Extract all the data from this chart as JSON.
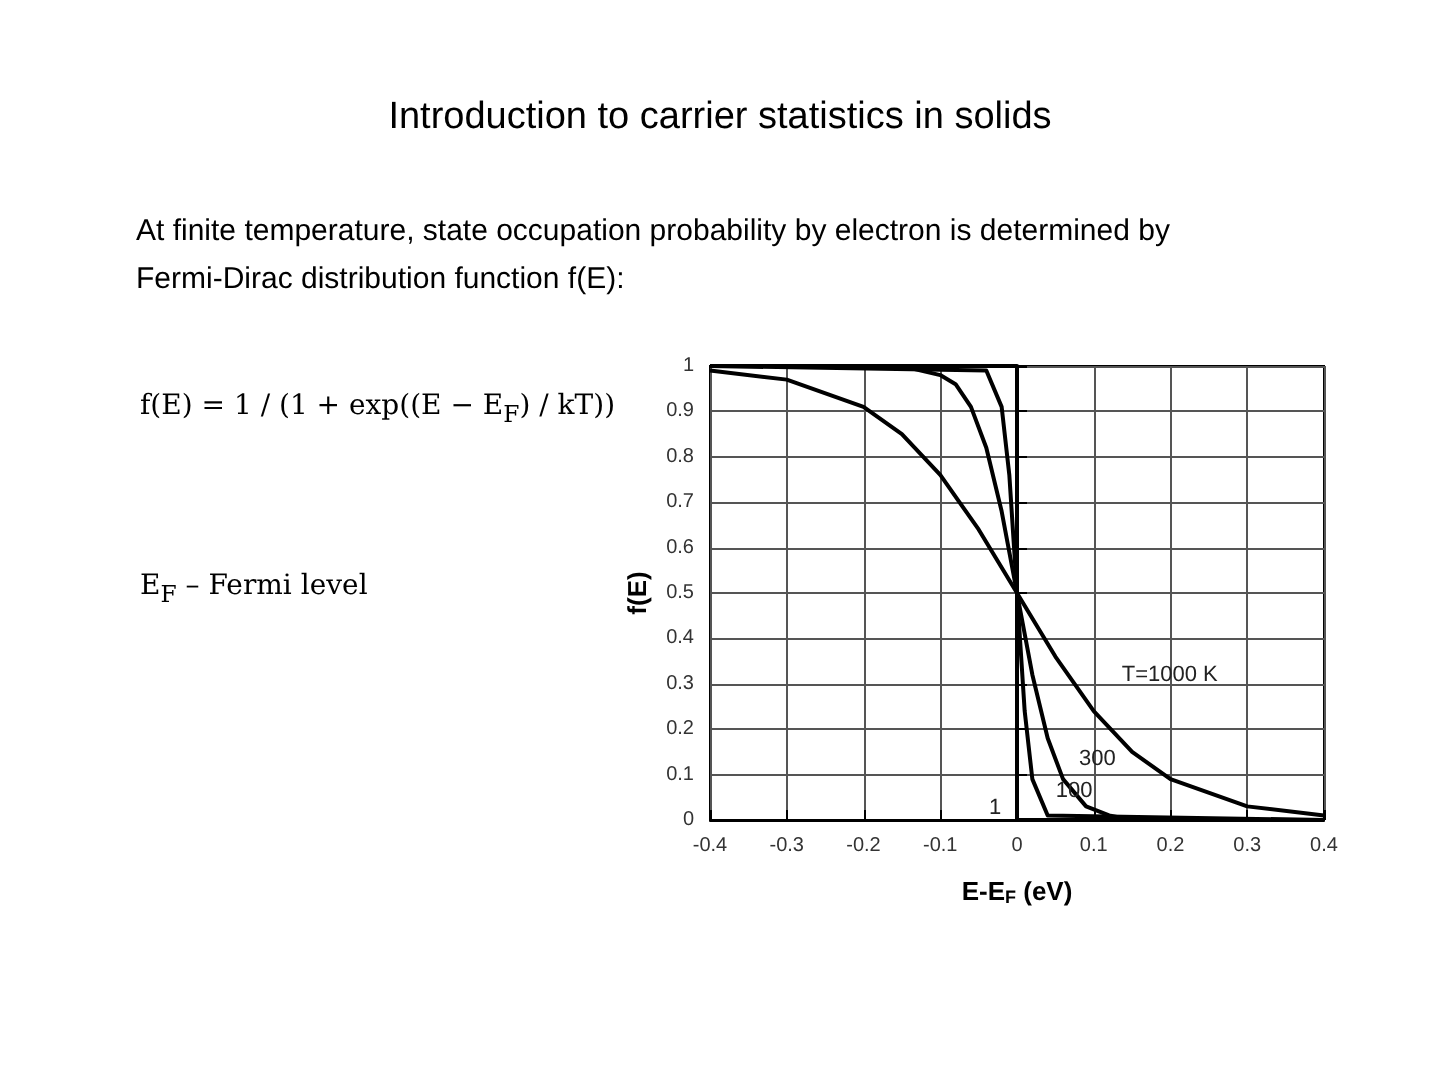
{
  "chart_data": {
    "type": "line",
    "title": "Introduction to carrier statistics in solids",
    "subtitle": "At finite temperature, state occupation probability by electron is determined by Fermi-Dirac distribution function f(E):",
    "xlabel": "E-E$_{F}$ (eV)",
    "ylabel": "f(E)",
    "series": [
      {
        "color": "#000000",
        "x": [
          -0.4,
          -0.3,
          -0.2,
          -0.15,
          -0.1,
          -0.05,
          0,
          0.05,
          0.1,
          0.15,
          0.2,
          0.3,
          0.4
        ],
        "values": [
          0.99,
          0.97,
          0.91,
          0.85,
          0.76,
          0.64,
          0.5,
          0.36,
          0.24,
          0.15,
          0.09,
          0.03,
          0.01
        ]
      },
      {
        "color": "#000000",
        "x": [
          -0.4,
          -0.15,
          -0.1,
          -0.08,
          -0.06,
          -0.04,
          -0.02,
          0,
          0.02,
          0.04,
          0.06,
          0.09,
          0.12,
          0.15,
          0.4
        ],
        "values": [
          1,
          1,
          0.98,
          0.96,
          0.91,
          0.82,
          0.68,
          0.5,
          0.32,
          0.18,
          0.09,
          0.03,
          0.01,
          0,
          0
        ]
      },
      {
        "color": "#000000",
        "x": [
          -0.4,
          -0.04,
          -0.02,
          -0.01,
          0,
          0.01,
          0.02,
          0.04,
          0.4
        ],
        "values": [
          1,
          0.99,
          0.91,
          0.76,
          0.5,
          0.24,
          0.09,
          0.01,
          0
        ]
      },
      {
        "color": "#000000",
        "x": [
          -0.4,
          0,
          0,
          0.4
        ],
        "values": [
          1,
          1,
          0,
          0
        ]
      }
    ],
    "annotations": [
      "f(E) = 1 / (1 + exp((E − E$_{F}$) / kT))",
      "E$_{F}$ – Fermi level",
      {
        "text": "T=1000 K",
        "x": 0.1,
        "y": 0.24
      },
      {
        "text": "300",
        "x": 0.06,
        "y": 0.09
      },
      {
        "text": "100",
        "x": 0.04,
        "y": 0.01
      },
      {
        "text": "1",
        "x": 0,
        "y": 0
      }
    ],
    "xlim": [
      -0.4,
      0.4
    ],
    "xticks": [
      -0.4,
      -0.3,
      -0.2,
      -0.1,
      0,
      0.1,
      0.2,
      0.3,
      0.4
    ],
    "ylim": [
      0,
      1
    ],
    "yticks": [
      0,
      0.1,
      0.2,
      0.3,
      0.4,
      0.5,
      0.6,
      0.7,
      0.8,
      0.9,
      1
    ],
    "grid": true,
    "marker": "none",
    "line_style": "solid"
  }
}
